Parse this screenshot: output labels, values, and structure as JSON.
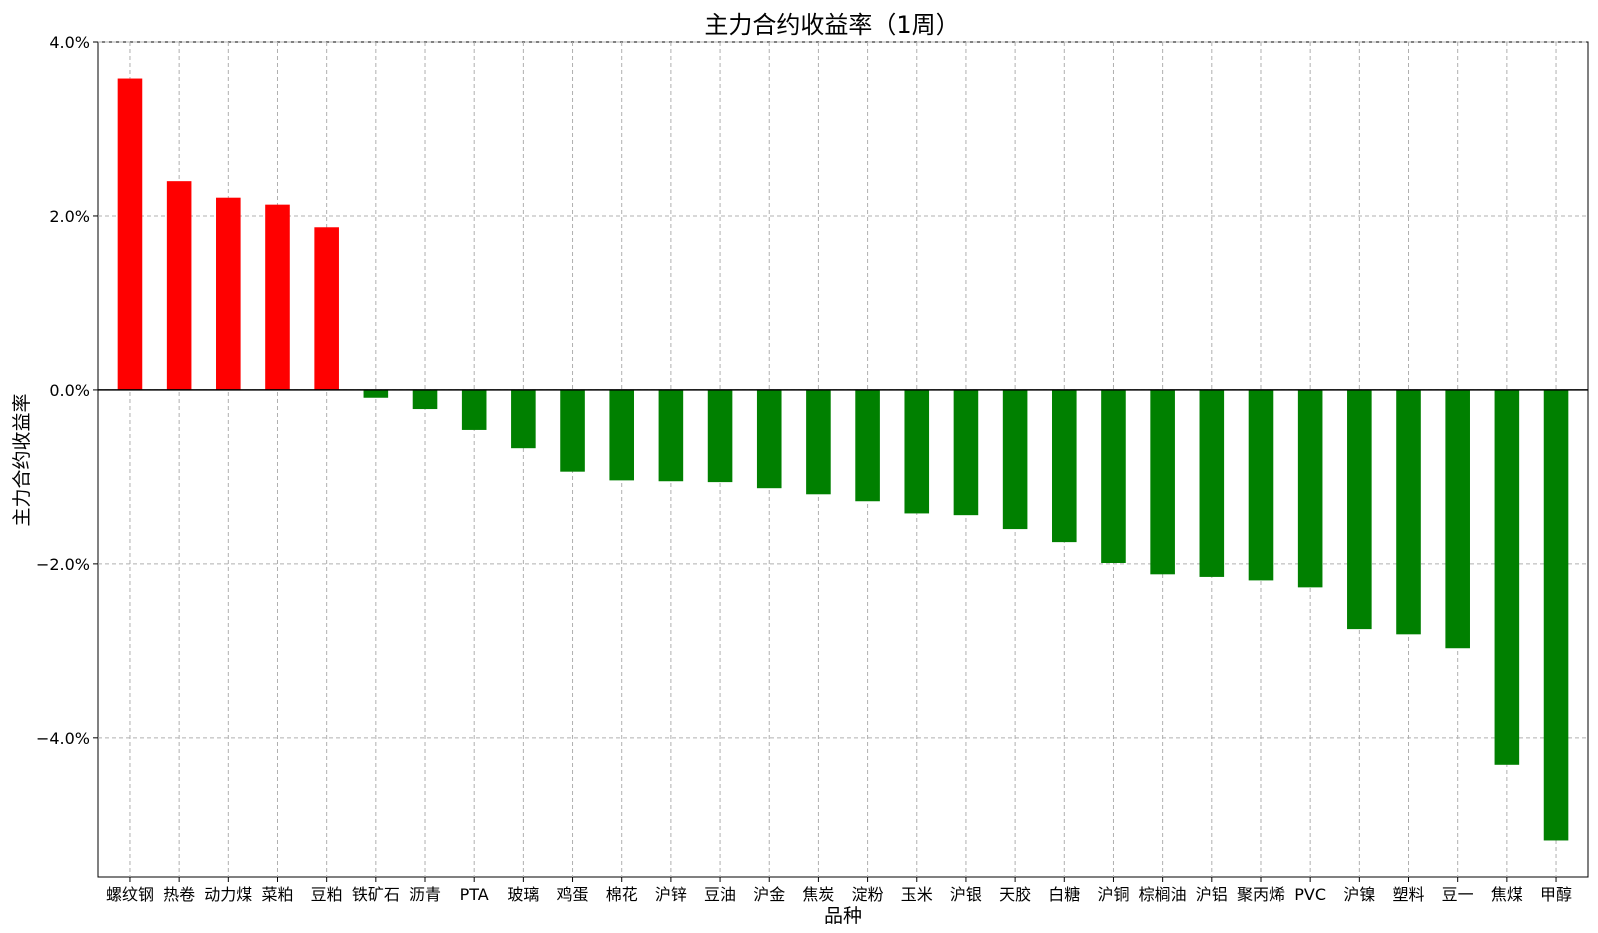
{
  "chart_data": {
    "type": "bar",
    "title": "主力合约收益率（1周）",
    "xlabel": "品种",
    "ylabel": "主力合约收益率",
    "ylim": [
      -5.6,
      4.0
    ],
    "yticks": [
      4.0,
      2.0,
      0.0,
      -2.0,
      -4.0
    ],
    "ytick_labels": [
      "4.0%",
      "2.0%",
      "0.0%",
      "−2.0%",
      "−4.0%"
    ],
    "grid": true,
    "positive_color": "#ff0000",
    "negative_color": "#008000",
    "categories": [
      "螺纹钢",
      "热卷",
      "动力煤",
      "菜粕",
      "豆粕",
      "铁矿石",
      "沥青",
      "PTA",
      "玻璃",
      "鸡蛋",
      "棉花",
      "沪锌",
      "豆油",
      "沪金",
      "焦炭",
      "淀粉",
      "玉米",
      "沪银",
      "天胶",
      "白糖",
      "沪铜",
      "棕榈油",
      "沪铝",
      "聚丙烯",
      "PVC",
      "沪镍",
      "塑料",
      "豆一",
      "焦煤",
      "甲醇"
    ],
    "values": [
      3.58,
      2.4,
      2.21,
      2.13,
      1.87,
      -0.09,
      -0.22,
      -0.46,
      -0.67,
      -0.94,
      -1.04,
      -1.05,
      -1.06,
      -1.13,
      -1.2,
      -1.28,
      -1.42,
      -1.44,
      -1.6,
      -1.75,
      -1.99,
      -2.12,
      -2.15,
      -2.19,
      -2.27,
      -2.75,
      -2.81,
      -2.97,
      -4.31,
      -5.18
    ]
  }
}
